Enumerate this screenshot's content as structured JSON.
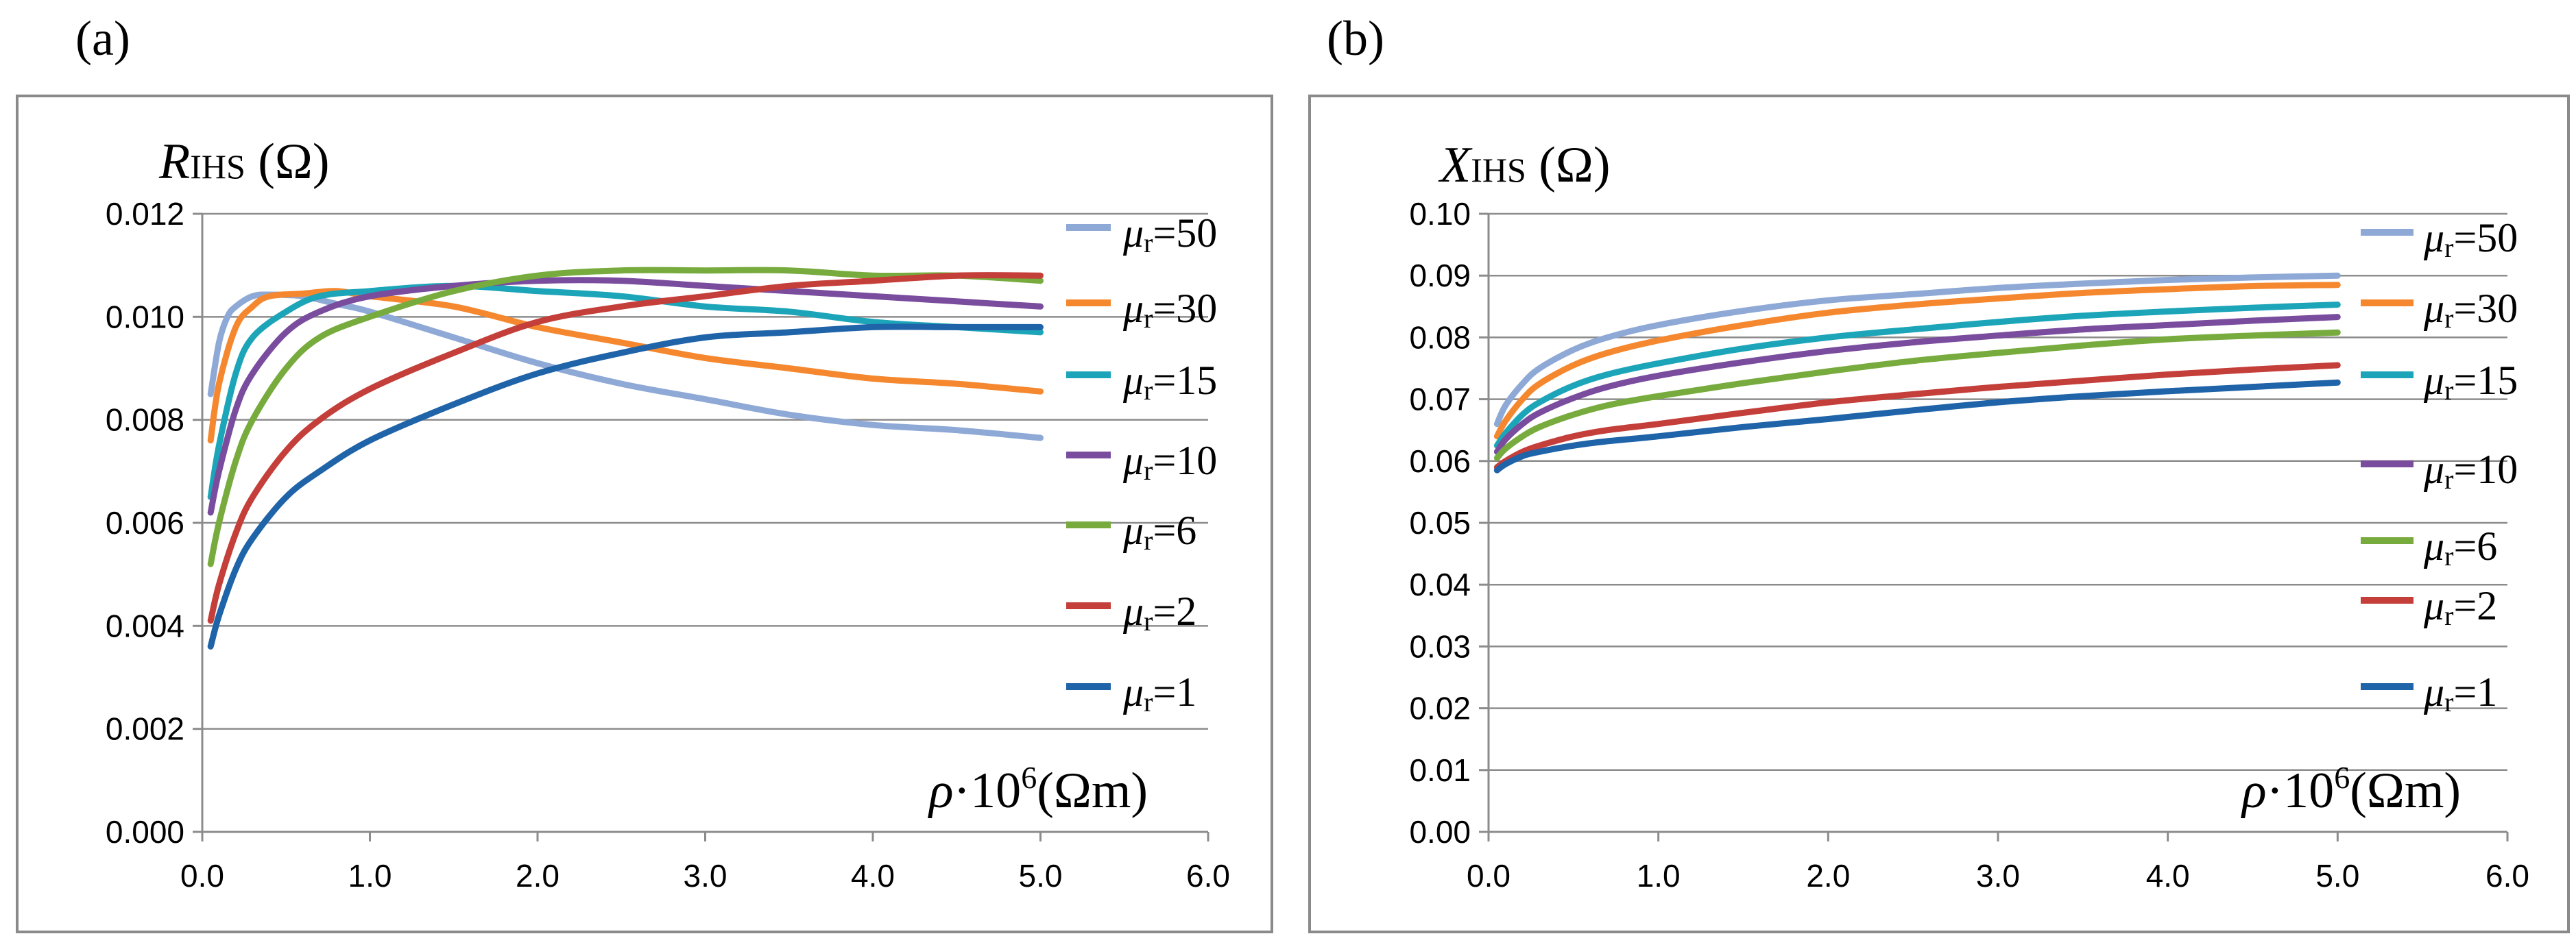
{
  "chart_data": [
    {
      "type": "line",
      "panel_label": "(a)",
      "ylabel": {
        "main": "R",
        "sub": "IHS",
        "unit": " (Ω)"
      },
      "xlabel": {
        "main": "ρ",
        "rest": "·10",
        "sup": "6",
        "unit": "(Ωm)"
      },
      "xlim": [
        0,
        6
      ],
      "ylim": [
        0,
        0.012
      ],
      "x_ticks": [
        0,
        1,
        2,
        3,
        4,
        5,
        6
      ],
      "x_tick_labels": [
        "0.0",
        "1.0",
        "2.0",
        "3.0",
        "4.0",
        "5.0",
        "6.0"
      ],
      "y_ticks": [
        0,
        0.002,
        0.004,
        0.006,
        0.008,
        0.01,
        0.012
      ],
      "y_tick_labels": [
        "0.000",
        "0.002",
        "0.004",
        "0.006",
        "0.008",
        "0.010",
        "0.012"
      ],
      "grid": "horizontal",
      "legend_position": "right",
      "series": [
        {
          "name": "μr=50",
          "mu": "μ",
          "sub": "r",
          "val": "=50",
          "color": "#8EA9D6",
          "x": [
            0.05,
            0.1,
            0.15,
            0.2,
            0.3,
            0.4,
            0.6,
            0.8,
            1.0,
            1.5,
            2.0,
            2.5,
            3.0,
            3.5,
            4.0,
            4.5,
            5.0
          ],
          "y": [
            0.0085,
            0.0095,
            0.01,
            0.0102,
            0.0104,
            0.01043,
            0.0104,
            0.01025,
            0.0101,
            0.0096,
            0.0091,
            0.0087,
            0.0084,
            0.0081,
            0.0079,
            0.0078,
            0.00765
          ]
        },
        {
          "name": "μr=30",
          "mu": "μ",
          "sub": "r",
          "val": "=30",
          "color": "#F5882F",
          "x": [
            0.05,
            0.1,
            0.2,
            0.3,
            0.4,
            0.6,
            0.8,
            1.0,
            1.5,
            2.0,
            2.5,
            3.0,
            3.5,
            4.0,
            4.5,
            5.0
          ],
          "y": [
            0.0076,
            0.0087,
            0.0098,
            0.0102,
            0.0104,
            0.01045,
            0.0105,
            0.0104,
            0.0102,
            0.0098,
            0.0095,
            0.0092,
            0.009,
            0.0088,
            0.0087,
            0.00855
          ]
        },
        {
          "name": "μr=15",
          "mu": "μ",
          "sub": "r",
          "val": "=15",
          "color": "#1CA5B8",
          "x": [
            0.05,
            0.1,
            0.2,
            0.3,
            0.5,
            0.7,
            1.0,
            1.5,
            2.0,
            2.5,
            3.0,
            3.5,
            4.0,
            4.5,
            5.0
          ],
          "y": [
            0.0065,
            0.0075,
            0.0089,
            0.0096,
            0.0101,
            0.0104,
            0.0105,
            0.0106,
            0.0105,
            0.0104,
            0.0102,
            0.0101,
            0.0099,
            0.0098,
            0.0097
          ]
        },
        {
          "name": "μr=10",
          "mu": "μ",
          "sub": "r",
          "val": "=10",
          "color": "#7A4C9E",
          "x": [
            0.05,
            0.1,
            0.2,
            0.3,
            0.5,
            0.7,
            1.0,
            1.5,
            2.0,
            2.5,
            3.0,
            3.5,
            4.0,
            4.5,
            5.0
          ],
          "y": [
            0.0062,
            0.007,
            0.0082,
            0.0089,
            0.0097,
            0.0101,
            0.0104,
            0.0106,
            0.0107,
            0.0107,
            0.0106,
            0.0105,
            0.0104,
            0.0103,
            0.0102
          ]
        },
        {
          "name": "μr=6",
          "mu": "μ",
          "sub": "r",
          "val": "=6",
          "color": "#77AB3D",
          "x": [
            0.05,
            0.1,
            0.2,
            0.3,
            0.5,
            0.7,
            1.0,
            1.5,
            2.0,
            2.5,
            3.0,
            3.5,
            4.0,
            4.5,
            5.0
          ],
          "y": [
            0.0052,
            0.006,
            0.0072,
            0.008,
            0.009,
            0.0096,
            0.01,
            0.0105,
            0.0108,
            0.0109,
            0.0109,
            0.0109,
            0.0108,
            0.0108,
            0.0107
          ]
        },
        {
          "name": "μr=2",
          "mu": "μ",
          "sub": "r",
          "val": "=2",
          "color": "#C43E3A",
          "x": [
            0.05,
            0.1,
            0.2,
            0.3,
            0.5,
            0.7,
            1.0,
            1.5,
            2.0,
            2.5,
            3.0,
            3.5,
            4.0,
            4.5,
            5.0
          ],
          "y": [
            0.0041,
            0.0048,
            0.0058,
            0.0065,
            0.0074,
            0.008,
            0.0086,
            0.0093,
            0.0099,
            0.0102,
            0.0104,
            0.0106,
            0.0107,
            0.0108,
            0.0108
          ]
        },
        {
          "name": "μr=1",
          "mu": "μ",
          "sub": "r",
          "val": "=1",
          "color": "#1F63A8",
          "x": [
            0.05,
            0.1,
            0.2,
            0.3,
            0.5,
            0.7,
            1.0,
            1.5,
            2.0,
            2.5,
            3.0,
            3.5,
            4.0,
            4.5,
            5.0
          ],
          "y": [
            0.0036,
            0.0042,
            0.0051,
            0.0057,
            0.0065,
            0.007,
            0.0076,
            0.0083,
            0.0089,
            0.0093,
            0.0096,
            0.0097,
            0.0098,
            0.0098,
            0.0098
          ]
        }
      ]
    },
    {
      "type": "line",
      "panel_label": "(b)",
      "ylabel": {
        "main": "X",
        "sub": "IHS",
        "unit": " (Ω)"
      },
      "xlabel": {
        "main": "ρ",
        "rest": "·10",
        "sup": "6",
        "unit": "(Ωm)"
      },
      "xlim": [
        0,
        6
      ],
      "ylim": [
        0,
        0.1
      ],
      "x_ticks": [
        0,
        1,
        2,
        3,
        4,
        5,
        6
      ],
      "x_tick_labels": [
        "0.0",
        "1.0",
        "2.0",
        "3.0",
        "4.0",
        "5.0",
        "6.0"
      ],
      "y_ticks": [
        0,
        0.01,
        0.02,
        0.03,
        0.04,
        0.05,
        0.06,
        0.07,
        0.08,
        0.09,
        0.1
      ],
      "y_tick_labels": [
        "0.00",
        "0.01",
        "0.02",
        "0.03",
        "0.04",
        "0.05",
        "0.06",
        "0.07",
        "0.08",
        "0.09",
        "0.10"
      ],
      "grid": "horizontal",
      "legend_position": "right",
      "series": [
        {
          "name": "μr=50",
          "mu": "μ",
          "sub": "r",
          "val": "=50",
          "color": "#8EA9D6",
          "x": [
            0.05,
            0.1,
            0.2,
            0.3,
            0.5,
            0.7,
            1.0,
            1.5,
            2.0,
            2.5,
            3.0,
            3.5,
            4.0,
            4.5,
            5.0
          ],
          "y": [
            0.066,
            0.069,
            0.0725,
            0.075,
            0.078,
            0.08,
            0.082,
            0.0843,
            0.086,
            0.087,
            0.088,
            0.0887,
            0.0893,
            0.0897,
            0.09
          ]
        },
        {
          "name": "μr=30",
          "mu": "μ",
          "sub": "r",
          "val": "=30",
          "color": "#F5882F",
          "x": [
            0.05,
            0.1,
            0.2,
            0.3,
            0.5,
            0.7,
            1.0,
            1.5,
            2.0,
            2.5,
            3.0,
            3.5,
            4.0,
            4.5,
            5.0
          ],
          "y": [
            0.064,
            0.0665,
            0.07,
            0.0725,
            0.0755,
            0.0775,
            0.0795,
            0.082,
            0.084,
            0.0853,
            0.0863,
            0.0872,
            0.0878,
            0.0883,
            0.0885
          ]
        },
        {
          "name": "μr=15",
          "mu": "μ",
          "sub": "r",
          "val": "=15",
          "color": "#1CA5B8",
          "x": [
            0.05,
            0.1,
            0.2,
            0.3,
            0.5,
            0.7,
            1.0,
            1.5,
            2.0,
            2.5,
            3.0,
            3.5,
            4.0,
            4.5,
            5.0
          ],
          "y": [
            0.0625,
            0.0645,
            0.0675,
            0.0695,
            0.0722,
            0.074,
            0.0758,
            0.0782,
            0.08,
            0.0813,
            0.0825,
            0.0835,
            0.0842,
            0.0848,
            0.0853
          ]
        },
        {
          "name": "μr=10",
          "mu": "μ",
          "sub": "r",
          "val": "=10",
          "color": "#7A4C9E",
          "x": [
            0.05,
            0.1,
            0.2,
            0.3,
            0.5,
            0.7,
            1.0,
            1.5,
            2.0,
            2.5,
            3.0,
            3.5,
            4.0,
            4.5,
            5.0
          ],
          "y": [
            0.0615,
            0.0635,
            0.066,
            0.0678,
            0.0702,
            0.072,
            0.0738,
            0.076,
            0.0778,
            0.0792,
            0.0803,
            0.0813,
            0.082,
            0.0827,
            0.0833
          ]
        },
        {
          "name": "μr=6",
          "mu": "μ",
          "sub": "r",
          "val": "=6",
          "color": "#77AB3D",
          "x": [
            0.05,
            0.1,
            0.2,
            0.3,
            0.5,
            0.7,
            1.0,
            1.5,
            2.0,
            2.5,
            3.0,
            3.5,
            4.0,
            4.5,
            5.0
          ],
          "y": [
            0.0605,
            0.062,
            0.064,
            0.0655,
            0.0675,
            0.069,
            0.0705,
            0.0726,
            0.0745,
            0.0762,
            0.0775,
            0.0787,
            0.0797,
            0.0803,
            0.0808
          ]
        },
        {
          "name": "μr=2",
          "mu": "μ",
          "sub": "r",
          "val": "=2",
          "color": "#C43E3A",
          "x": [
            0.05,
            0.1,
            0.2,
            0.3,
            0.5,
            0.7,
            1.0,
            1.5,
            2.0,
            2.5,
            3.0,
            3.5,
            4.0,
            4.5,
            5.0
          ],
          "y": [
            0.059,
            0.06,
            0.0615,
            0.0625,
            0.064,
            0.065,
            0.066,
            0.0678,
            0.0695,
            0.0708,
            0.072,
            0.073,
            0.074,
            0.0748,
            0.0755
          ]
        },
        {
          "name": "μr=1",
          "mu": "μ",
          "sub": "r",
          "val": "=1",
          "color": "#1F63A8",
          "x": [
            0.05,
            0.1,
            0.2,
            0.3,
            0.5,
            0.7,
            1.0,
            1.5,
            2.0,
            2.5,
            3.0,
            3.5,
            4.0,
            4.5,
            5.0
          ],
          "y": [
            0.0585,
            0.0595,
            0.0608,
            0.0615,
            0.0625,
            0.0632,
            0.064,
            0.0655,
            0.0668,
            0.0682,
            0.0695,
            0.0705,
            0.0713,
            0.072,
            0.0727
          ]
        }
      ]
    }
  ]
}
